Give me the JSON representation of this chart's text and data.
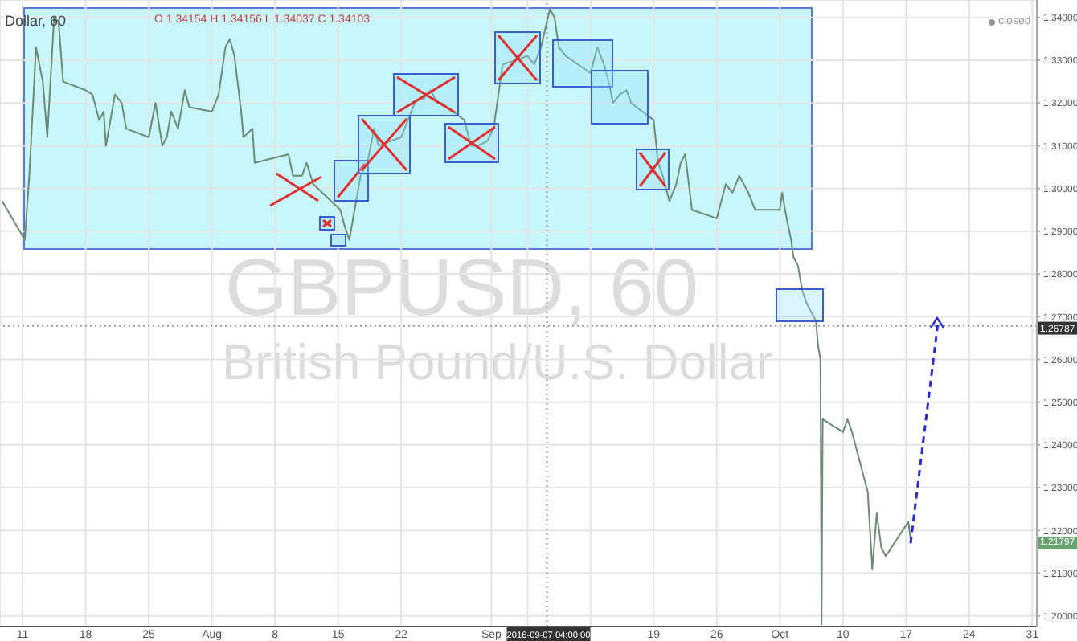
{
  "chart_data": {
    "type": "line",
    "title": "GBPUSD, 60",
    "subtitle": "British Pound/U.S. Dollar",
    "annotations": [
      "Dollar, 60",
      "O 1.34154 H 1.34156 L 1.34037 C 1.34103",
      "closed",
      "1.21797"
    ],
    "x": [
      "2016-07-08T18:00",
      "2016-07-11T06:00",
      "2016-07-11T18:00",
      "2016-07-12T12:00",
      "2016-07-13T06:00",
      "2016-07-13T18:00",
      "2016-07-14T12:00",
      "2016-07-15T00:00",
      "2016-07-15T12:00",
      "2016-07-18T00:00",
      "2016-07-18T18:00",
      "2016-07-19T12:00",
      "2016-07-20T00:00",
      "2016-07-20T06:00",
      "2016-07-21T06:00",
      "2016-07-22T00:00",
      "2016-07-22T12:00",
      "2016-07-25T00:00",
      "2016-07-25T18:00",
      "2016-07-26T12:00",
      "2016-07-27T00:00",
      "2016-07-27T12:00",
      "2016-07-28T06:00",
      "2016-07-29T00:00",
      "2016-07-29T12:00",
      "2016-08-01T00:00",
      "2016-08-01T18:00",
      "2016-08-02T12:00",
      "2016-08-03T00:00",
      "2016-08-03T12:00",
      "2016-08-04T06:00",
      "2016-08-04T12:00",
      "2016-08-05T12:00",
      "2016-08-05T18:00",
      "2016-08-09T12:00",
      "2016-08-10T00:00",
      "2016-08-11T00:00",
      "2016-08-11T12:00",
      "2016-08-12T06:00",
      "2016-08-15T06:00",
      "2016-08-15T18:00",
      "2016-08-16T06:00",
      "2016-08-17T00:00",
      "2016-08-17T12:00",
      "2016-08-18T06:00",
      "2016-08-19T00:00",
      "2016-08-19T12:00",
      "2016-08-22T00:00",
      "2016-08-22T18:00",
      "2016-08-23T12:00",
      "2016-08-24T00:00",
      "2016-08-24T12:00",
      "2016-08-25T06:00",
      "2016-08-26T00:00",
      "2016-08-26T12:00",
      "2016-08-29T00:00",
      "2016-08-29T18:00",
      "2016-08-30T12:00",
      "2016-08-31T12:00",
      "2016-09-01T06:00",
      "2016-09-02T06:00",
      "2016-09-05T00:00",
      "2016-09-05T18:00",
      "2016-09-06T12:00",
      "2016-09-07T12:00",
      "2016-09-08T00:00",
      "2016-09-08T12:00",
      "2016-09-09T06:00",
      "2016-09-12T00:00",
      "2016-09-12T18:00",
      "2016-09-13T12:00",
      "2016-09-14T00:00",
      "2016-09-14T12:00",
      "2016-09-15T06:00",
      "2016-09-16T00:00",
      "2016-09-16T12:00",
      "2016-09-19T00:00",
      "2016-09-19T12:00",
      "2016-09-20T00:00",
      "2016-09-20T18:00",
      "2016-09-21T12:00",
      "2016-09-22T00:00",
      "2016-09-22T12:00",
      "2016-09-23T06:00",
      "2016-09-26T00:00",
      "2016-09-26T12:00",
      "2016-09-27T00:00",
      "2016-09-27T18:00",
      "2016-09-28T12:00",
      "2016-09-29T00:00",
      "2016-09-29T12:00",
      "2016-09-30T06:00",
      "2016-10-03T00:00",
      "2016-10-03T06:00",
      "2016-10-03T18:00",
      "2016-10-04T06:00",
      "2016-10-04T12:00",
      "2016-10-05T00:00",
      "2016-10-05T12:00",
      "2016-10-06T00:00",
      "2016-10-06T12:00",
      "2016-10-07T00:00",
      "2016-10-07T06:00",
      "2016-10-07T12:00",
      "2016-10-07T15:00",
      "2016-10-07T18:00",
      "2016-10-10T00:00",
      "2016-10-10T12:00",
      "2016-10-11T00:00",
      "2016-10-11T18:00",
      "2016-10-12T12:00",
      "2016-10-12T18:00",
      "2016-10-13T00:00",
      "2016-10-13T06:00",
      "2016-10-13T18:00",
      "2016-10-14T06:00",
      "2016-10-14T18:00",
      "2016-10-17T06:00",
      "2016-10-17T12:00"
    ],
    "series": [
      {
        "color": "#6d8a75",
        "values": [
          1.297,
          1.288,
          1.303,
          1.333,
          1.325,
          1.312,
          1.34,
          1.339,
          1.325,
          1.323,
          1.322,
          1.316,
          1.318,
          1.31,
          1.322,
          1.32,
          1.314,
          1.312,
          1.32,
          1.31,
          1.312,
          1.318,
          1.314,
          1.323,
          1.319,
          1.318,
          1.322,
          1.333,
          1.335,
          1.331,
          1.318,
          1.312,
          1.314,
          1.306,
          1.308,
          1.303,
          1.303,
          1.306,
          1.301,
          1.295,
          1.291,
          1.288,
          1.297,
          1.303,
          1.306,
          1.314,
          1.31,
          1.312,
          1.316,
          1.32,
          1.321,
          1.321,
          1.323,
          1.32,
          1.32,
          1.316,
          1.31,
          1.31,
          1.311,
          1.314,
          1.329,
          1.331,
          1.329,
          1.333,
          1.342,
          1.34,
          1.333,
          1.331,
          1.327,
          1.333,
          1.329,
          1.325,
          1.32,
          1.322,
          1.323,
          1.32,
          1.316,
          1.306,
          1.303,
          1.297,
          1.301,
          1.306,
          1.308,
          1.295,
          1.293,
          1.297,
          1.301,
          1.299,
          1.303,
          1.301,
          1.299,
          1.295,
          1.295,
          1.299,
          1.293,
          1.288,
          1.284,
          1.282,
          1.276,
          1.273,
          1.271,
          1.269,
          1.263,
          1.26,
          1.198,
          1.246,
          1.243,
          1.246,
          1.243,
          1.237,
          1.231,
          1.229,
          1.22,
          1.211,
          1.224,
          1.216,
          1.214,
          1.222,
          1.218
        ]
      },
      {
        "color": "#2b2bd0",
        "line_style": "dashed",
        "x": [
          "2016-10-17T12:00",
          "2016-10-20T12:00"
        ],
        "values": [
          1.217,
          1.268
        ]
      }
    ],
    "xlim": [
      "2016-07-08T12:00",
      "2016-10-31T12:00"
    ],
    "xticks": [
      {
        "value": "2016-07-11",
        "label": "11"
      },
      {
        "value": "2016-07-18",
        "label": "18"
      },
      {
        "value": "2016-07-25",
        "label": "25"
      },
      {
        "value": "2016-08-01",
        "label": "Aug"
      },
      {
        "value": "2016-08-08",
        "label": "8"
      },
      {
        "value": "2016-08-15",
        "label": "15"
      },
      {
        "value": "2016-08-22",
        "label": "22"
      },
      {
        "value": "2016-09-01",
        "label": "Sep"
      },
      {
        "value": "2016-09-05",
        "label": null
      },
      {
        "value": "2016-09-12",
        "label": null
      },
      {
        "value": "2016-09-19",
        "label": "19"
      },
      {
        "value": "2016-09-26",
        "label": "26"
      },
      {
        "value": "2016-10-03",
        "label": "Oct"
      },
      {
        "value": "2016-10-10",
        "label": "10"
      },
      {
        "value": "2016-10-17",
        "label": "17"
      },
      {
        "value": "2016-10-24",
        "label": "24"
      },
      {
        "value": "2016-10-31",
        "label": "31"
      }
    ],
    "ylim": [
      1.1975,
      1.3441
    ],
    "yticks": [
      {
        "value": 1.2,
        "label": "1.20000"
      },
      {
        "value": 1.21,
        "label": "1.21000"
      },
      {
        "value": 1.22,
        "label": "1.22000"
      },
      {
        "value": 1.23,
        "label": "1.23000"
      },
      {
        "value": 1.24,
        "label": "1.24000"
      },
      {
        "value": 1.25,
        "label": "1.25000"
      },
      {
        "value": 1.26,
        "label": "1.26000"
      },
      {
        "value": 1.27,
        "label": "1.27000"
      },
      {
        "value": 1.28,
        "label": "1.28000"
      },
      {
        "value": 1.29,
        "label": "1.29000"
      },
      {
        "value": 1.3,
        "label": "1.30000"
      },
      {
        "value": 1.31,
        "label": "1.31000"
      },
      {
        "value": 1.32,
        "label": "1.32000"
      },
      {
        "value": 1.33,
        "label": "1.33000"
      },
      {
        "value": 1.34,
        "label": "1.34000"
      }
    ],
    "ref_lines": [
      {
        "axis": "x",
        "value": "2016-09-07T04:00",
        "label": "2016-09-07 04:00:00",
        "line_style": "dotted",
        "color": "#8a8a8a"
      },
      {
        "axis": "y",
        "value": 1.26787,
        "label": "1.26787",
        "line_style": "dotted",
        "color": "#8a8a8a"
      }
    ],
    "grid": true
  }
}
